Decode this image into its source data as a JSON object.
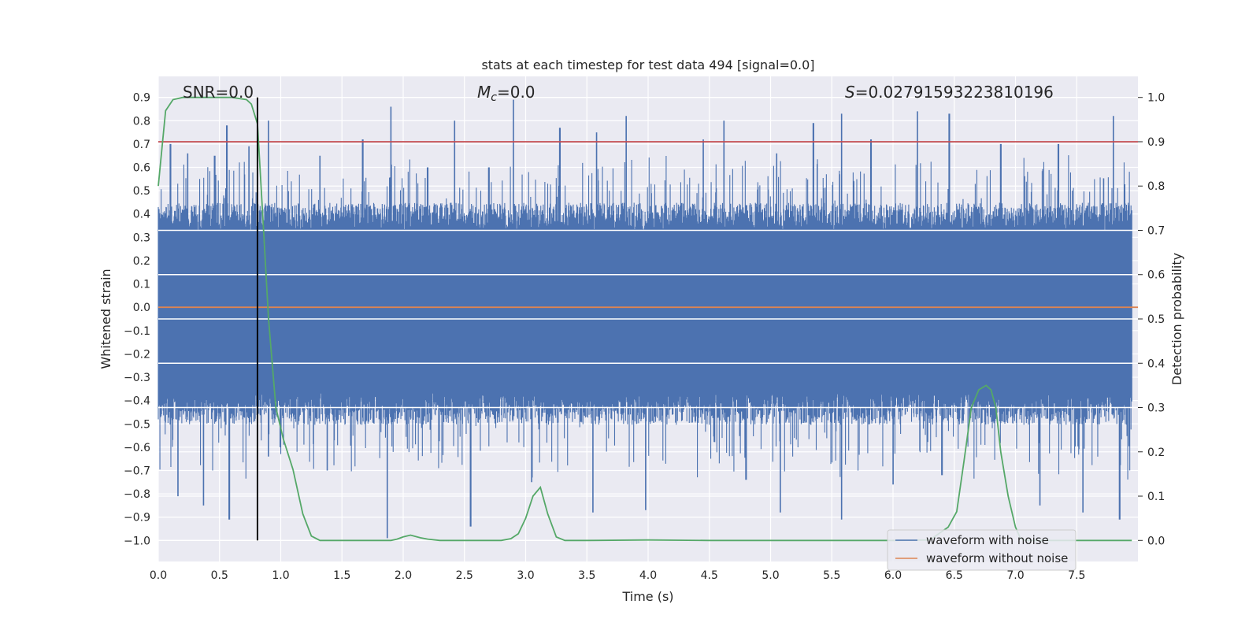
{
  "chart_data": {
    "type": "line",
    "title": "stats at each timestep for test data 494 [signal=0.0]",
    "xlabel": "Time (s)",
    "ylabel": "Whitened strain",
    "y2label": "Detection probability",
    "xlim": [
      0.0,
      8.0
    ],
    "ylim": [
      -1.09,
      0.99
    ],
    "y2lim": [
      -0.0475,
      1.0475
    ],
    "xticks": [
      "0.0",
      "0.5",
      "1.0",
      "1.5",
      "2.0",
      "2.5",
      "3.0",
      "3.5",
      "4.0",
      "4.5",
      "5.0",
      "5.5",
      "6.0",
      "6.5",
      "7.0",
      "7.5"
    ],
    "yticks": [
      "0.9",
      "0.8",
      "0.7",
      "0.6",
      "0.5",
      "0.4",
      "0.3",
      "0.2",
      "0.1",
      "0.0",
      "−0.1",
      "−0.2",
      "−0.3",
      "−0.4",
      "−0.5",
      "−0.6",
      "−0.7",
      "−0.8",
      "−0.9",
      "−1.0"
    ],
    "y2ticks": [
      "1.0",
      "0.9",
      "0.8",
      "0.7",
      "0.6",
      "0.5",
      "0.4",
      "0.3",
      "0.2",
      "0.1",
      "0.0"
    ],
    "annotations": {
      "snr": "SNR=0.0",
      "mc": "M",
      "mc_sub": "c",
      "mc_value": "=0.0",
      "s_symbol": "S",
      "s_value": "=0.02791593223810196"
    },
    "threshold_probability": 0.9,
    "marker_time": 0.81,
    "series": [
      {
        "name": "waveform with noise",
        "color": "#4c72b0",
        "envelope_upper_approx": 0.4,
        "envelope_lower_approx": -0.45,
        "peaks": [
          {
            "t": 0.1,
            "v": 0.7
          },
          {
            "t": 0.24,
            "v": 0.66
          },
          {
            "t": 0.46,
            "v": 0.65
          },
          {
            "t": 0.56,
            "v": 0.78
          },
          {
            "t": 0.74,
            "v": 0.69
          },
          {
            "t": 0.9,
            "v": 0.8
          },
          {
            "t": 1.32,
            "v": 0.65
          },
          {
            "t": 1.67,
            "v": 0.72
          },
          {
            "t": 1.9,
            "v": 0.86
          },
          {
            "t": 2.2,
            "v": 0.6
          },
          {
            "t": 2.42,
            "v": 0.8
          },
          {
            "t": 2.7,
            "v": 0.6
          },
          {
            "t": 2.9,
            "v": 0.89
          },
          {
            "t": 3.28,
            "v": 0.77
          },
          {
            "t": 3.58,
            "v": 0.75
          },
          {
            "t": 3.82,
            "v": 0.82
          },
          {
            "t": 4.45,
            "v": 0.72
          },
          {
            "t": 4.62,
            "v": 0.8
          },
          {
            "t": 5.05,
            "v": 0.66
          },
          {
            "t": 5.35,
            "v": 0.79
          },
          {
            "t": 5.58,
            "v": 0.83
          },
          {
            "t": 5.82,
            "v": 0.72
          },
          {
            "t": 6.2,
            "v": 0.84
          },
          {
            "t": 6.46,
            "v": 0.83
          },
          {
            "t": 6.88,
            "v": 0.7
          },
          {
            "t": 7.35,
            "v": 0.7
          },
          {
            "t": 7.8,
            "v": 0.82
          }
        ],
        "troughs": [
          {
            "t": 0.16,
            "v": -0.81
          },
          {
            "t": 0.37,
            "v": -0.85
          },
          {
            "t": 0.58,
            "v": -0.91
          },
          {
            "t": 0.9,
            "v": -0.64
          },
          {
            "t": 1.38,
            "v": -0.7
          },
          {
            "t": 1.87,
            "v": -0.99
          },
          {
            "t": 2.55,
            "v": -0.94
          },
          {
            "t": 3.05,
            "v": -0.75
          },
          {
            "t": 3.55,
            "v": -0.88
          },
          {
            "t": 3.98,
            "v": -0.87
          },
          {
            "t": 4.8,
            "v": -0.74
          },
          {
            "t": 5.08,
            "v": -0.88
          },
          {
            "t": 5.58,
            "v": -0.91
          },
          {
            "t": 6.0,
            "v": -0.76
          },
          {
            "t": 6.4,
            "v": -0.72
          },
          {
            "t": 7.2,
            "v": -0.85
          },
          {
            "t": 7.55,
            "v": -0.88
          },
          {
            "t": 7.85,
            "v": -0.91
          }
        ]
      },
      {
        "name": "waveform without noise",
        "color": "#dd8452",
        "x": [
          0.0,
          8.0
        ],
        "y": [
          0.0,
          0.0
        ]
      },
      {
        "name": "detection probability",
        "color": "#55a868",
        "axis": "right",
        "x": [
          0.0,
          0.06,
          0.12,
          0.2,
          0.3,
          0.5,
          0.6,
          0.72,
          0.76,
          0.81,
          0.86,
          0.9,
          0.96,
          1.02,
          1.1,
          1.18,
          1.25,
          1.32,
          1.45,
          1.6,
          1.75,
          1.9,
          1.95,
          2.0,
          2.06,
          2.14,
          2.2,
          2.3,
          2.5,
          2.8,
          2.88,
          2.94,
          3.0,
          3.06,
          3.12,
          3.18,
          3.25,
          3.32,
          3.5,
          4.0,
          4.5,
          5.0,
          5.5,
          6.0,
          6.3,
          6.45,
          6.52,
          6.58,
          6.64,
          6.7,
          6.76,
          6.8,
          6.84,
          6.88,
          6.94,
          7.0,
          7.04,
          7.08,
          7.2,
          7.5,
          7.95
        ],
        "y": [
          0.8,
          0.97,
          0.995,
          1.0,
          1.0,
          1.0,
          1.0,
          0.995,
          0.985,
          0.94,
          0.7,
          0.5,
          0.3,
          0.23,
          0.16,
          0.06,
          0.01,
          0.0,
          0.0,
          0.0,
          0.0,
          0.0,
          0.003,
          0.008,
          0.012,
          0.006,
          0.003,
          0.0,
          0.0,
          0.0,
          0.004,
          0.015,
          0.05,
          0.1,
          0.12,
          0.06,
          0.008,
          0.0,
          0.0,
          0.001,
          0.0,
          0.0,
          0.0,
          0.0,
          0.001,
          0.03,
          0.065,
          0.18,
          0.3,
          0.34,
          0.35,
          0.34,
          0.3,
          0.2,
          0.1,
          0.03,
          0.005,
          0.0,
          0.0,
          0.0,
          0.0
        ]
      }
    ],
    "legend": {
      "location": "lower-right",
      "entries": [
        "waveform with noise",
        "waveform without noise"
      ]
    },
    "style": {
      "background": "#eaeaf2",
      "grid": "#ffffff",
      "threshold_color": "#c44e52",
      "marker_color": "#000000"
    }
  }
}
